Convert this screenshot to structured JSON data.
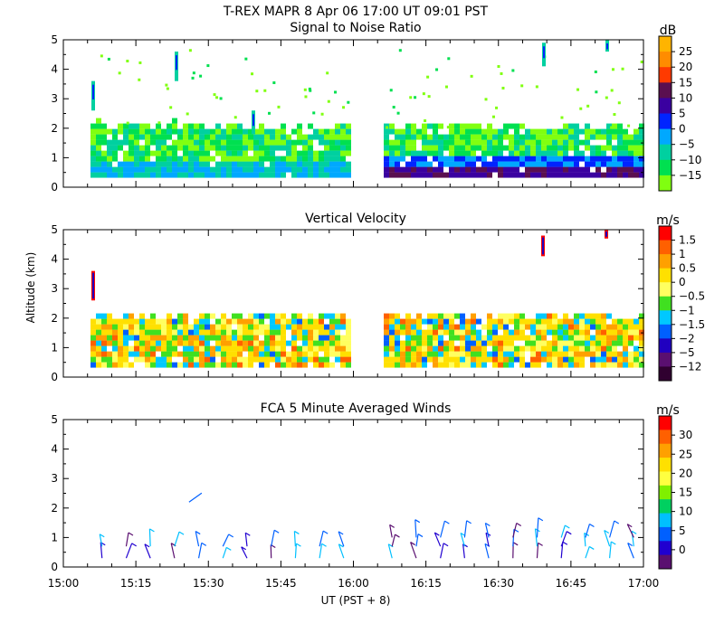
{
  "figure": {
    "title": "T-REX  MAPR  8 Apr 06  17:00 UT  09:01  PST",
    "xlabel": "UT  (PST + 8)",
    "ylabel": "Altitude (km)"
  },
  "chart_data": [
    {
      "type": "heatmap",
      "title": "Signal to Noise Ratio",
      "unit": "dB",
      "x_ticks": [
        "15:00",
        "15:15",
        "15:30",
        "15:45",
        "16:00",
        "16:15",
        "16:30",
        "16:45",
        "17:00"
      ],
      "y_ticks": [
        "0",
        "1",
        "2",
        "3",
        "4",
        "5"
      ],
      "xlim": [
        "15:00",
        "17:00"
      ],
      "ylim": [
        0,
        5
      ],
      "colorbar": {
        "labels": [
          "25",
          "20",
          "15",
          "10",
          "5",
          "0",
          "−5",
          "−10",
          "−15"
        ],
        "colors": [
          "#ffb400",
          "#ff8c00",
          "#ff3a00",
          "#5a0f50",
          "#3a00a0",
          "#0024ff",
          "#00a8ff",
          "#00d0a0",
          "#00e050",
          "#80ff10"
        ]
      },
      "data_gap": [
        "16:00",
        "16:06"
      ],
      "echo_top_km": 2.0
    },
    {
      "type": "heatmap",
      "title": "Vertical Velocity",
      "unit": "m/s",
      "x_ticks": [
        "15:00",
        "15:15",
        "15:30",
        "15:45",
        "16:00",
        "16:15",
        "16:30",
        "16:45",
        "17:00"
      ],
      "y_ticks": [
        "0",
        "1",
        "2",
        "3",
        "4",
        "5"
      ],
      "xlim": [
        "15:00",
        "17:00"
      ],
      "ylim": [
        0,
        5
      ],
      "colorbar": {
        "labels": [
          "1.5",
          "1",
          "0.5",
          "0",
          "−0.5",
          "−1",
          "−1.5",
          "−2",
          "−5",
          "−12"
        ],
        "colors": [
          "#ff0000",
          "#ff6000",
          "#ffa000",
          "#ffe000",
          "#ffff60",
          "#40e020",
          "#00c8ff",
          "#0060ff",
          "#2000c0",
          "#5a0f70",
          "#300030"
        ]
      },
      "data_gap": [
        "16:00",
        "16:06"
      ]
    },
    {
      "type": "scatter",
      "title": "FCA 5 Minute Averaged Winds",
      "unit": "m/s",
      "x_ticks": [
        "15:00",
        "15:15",
        "15:30",
        "15:45",
        "16:00",
        "16:15",
        "16:30",
        "16:45",
        "17:00"
      ],
      "y_ticks": [
        "0",
        "1",
        "2",
        "3",
        "4",
        "5"
      ],
      "xlim": [
        "15:00",
        "17:00"
      ],
      "ylim": [
        0,
        5
      ],
      "colorbar": {
        "labels": [
          "30",
          "25",
          "20",
          "15",
          "10",
          "5",
          "0"
        ],
        "colors": [
          "#ff0000",
          "#ff6000",
          "#ffa000",
          "#ffe000",
          "#ffff40",
          "#80f000",
          "#00d060",
          "#00c0ff",
          "#0060ff",
          "#2000d0",
          "#5a0f70"
        ]
      },
      "wind_times": [
        "15:08",
        "15:13",
        "15:18",
        "15:23",
        "15:28",
        "15:33",
        "15:38",
        "15:43",
        "15:48",
        "15:53",
        "15:58",
        "16:08",
        "16:13",
        "16:18",
        "16:23",
        "16:28",
        "16:33",
        "16:38",
        "16:43",
        "16:48",
        "16:53",
        "16:58"
      ],
      "wind_heights_km": [
        0.3,
        0.7,
        1.0,
        1.3,
        2.2
      ]
    }
  ]
}
